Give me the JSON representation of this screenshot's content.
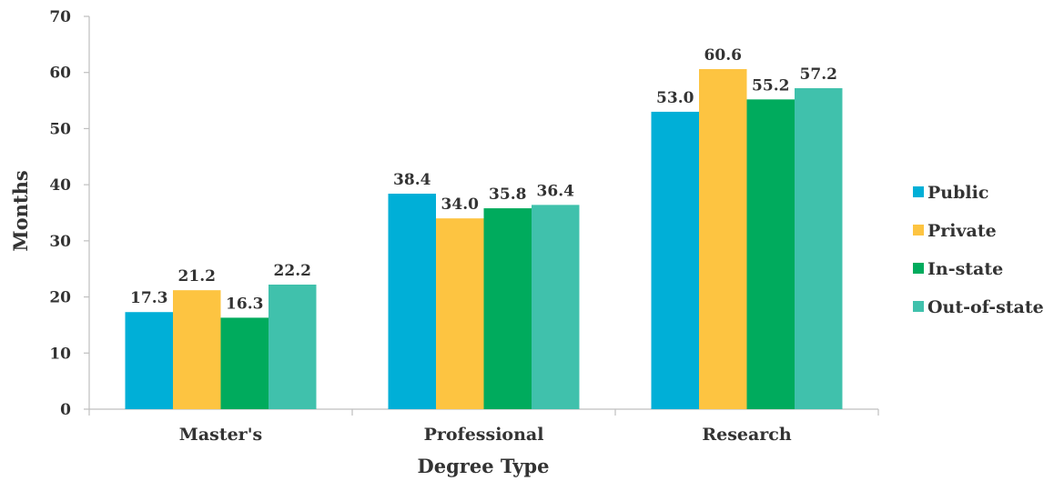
{
  "chart_data": {
    "type": "bar",
    "categories": [
      "Master's",
      "Professional",
      "Research"
    ],
    "series": [
      {
        "name": "Public",
        "color": "#00AFD7",
        "values": [
          17.3,
          38.4,
          53.0
        ]
      },
      {
        "name": "Private",
        "color": "#FDC441",
        "values": [
          21.2,
          34.0,
          60.6
        ]
      },
      {
        "name": "In-state",
        "color": "#00AB5D",
        "values": [
          16.3,
          35.8,
          55.2
        ]
      },
      {
        "name": "Out-of-state",
        "color": "#40C1AC",
        "values": [
          22.2,
          36.4,
          57.2
        ]
      }
    ],
    "data_labels": [
      [
        "17.3",
        "38.4",
        "53.0"
      ],
      [
        "21.2",
        "34.0",
        "60.6"
      ],
      [
        "16.3",
        "35.8",
        "55.2"
      ],
      [
        "22.2",
        "36.4",
        "57.2"
      ]
    ],
    "title": "",
    "xlabel": "Degree Type",
    "ylabel": "Months",
    "ylim": [
      0,
      70
    ],
    "yticks": [
      "0",
      "10",
      "20",
      "30",
      "40",
      "50",
      "60",
      "70"
    ],
    "grid": false,
    "legend_position": "right"
  }
}
